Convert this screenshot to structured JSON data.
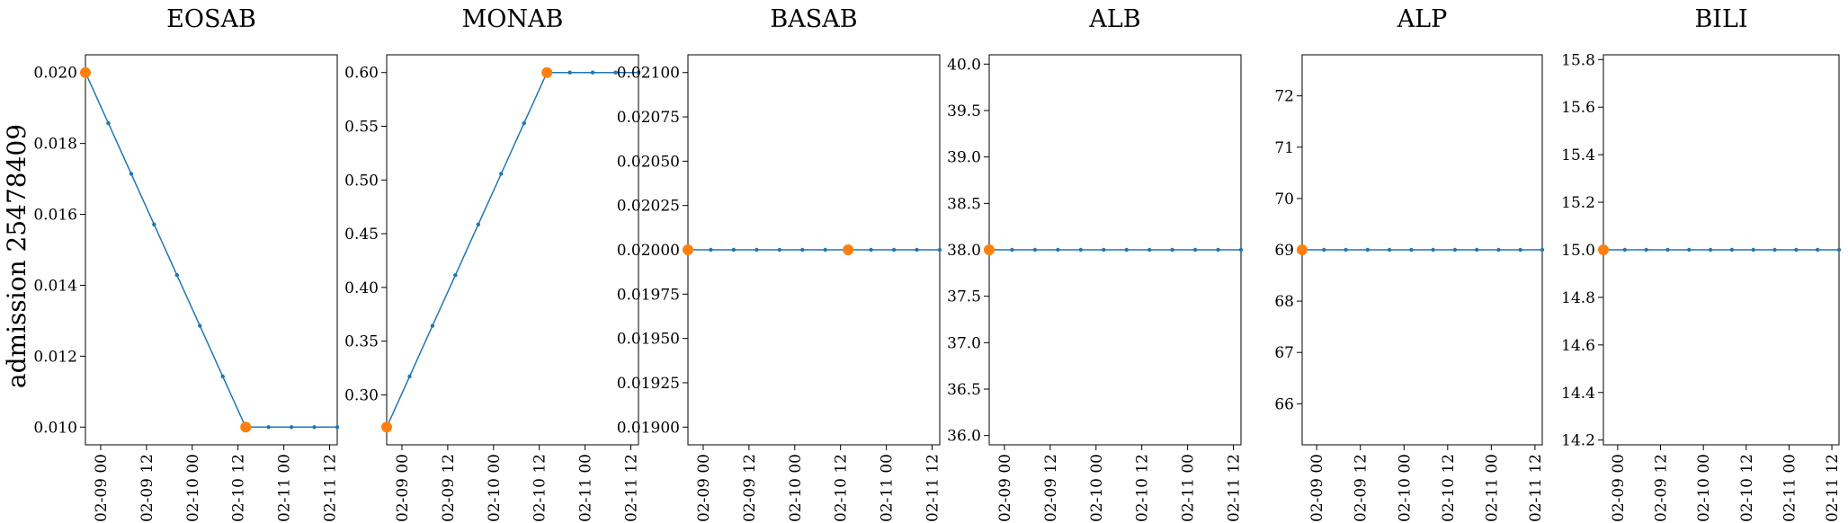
{
  "figure": {
    "ylabel": "admission 25478409"
  },
  "colors": {
    "line": "#1f77b4",
    "highlight": "#ff7f0e"
  },
  "x_ticks": [
    "02-09 00",
    "02-09 12",
    "02-10 00",
    "02-10 12",
    "02-11 00",
    "02-11 12"
  ],
  "x_hours": [
    0,
    12,
    24,
    36,
    48,
    60
  ],
  "chart_data": [
    {
      "type": "line",
      "title": "EOSAB",
      "ylim": [
        0.0095,
        0.0205
      ],
      "yticks": [
        0.01,
        0.012,
        0.014,
        0.016,
        0.018,
        0.02
      ],
      "ytick_decimals": 3,
      "x": [
        "02-08 20",
        "02-09 02",
        "02-09 08",
        "02-09 14",
        "02-09 20",
        "02-10 02",
        "02-10 08",
        "02-10 14",
        "02-10 20",
        "02-11 02",
        "02-11 08",
        "02-11 14"
      ],
      "values": [
        0.02,
        0.018571,
        0.017143,
        0.015714,
        0.014286,
        0.012857,
        0.011429,
        0.01,
        0.01,
        0.01,
        0.01,
        0.01
      ],
      "highlight_x": [
        "02-08 20",
        "02-10 14"
      ],
      "highlight_values": [
        0.02,
        0.01
      ]
    },
    {
      "type": "line",
      "title": "MONAB",
      "ylim": [
        0.2535,
        0.6165
      ],
      "yticks": [
        0.3,
        0.35,
        0.4,
        0.45,
        0.5,
        0.55,
        0.6
      ],
      "ytick_decimals": 2,
      "x": [
        "02-08 20",
        "02-09 02",
        "02-09 08",
        "02-09 14",
        "02-09 20",
        "02-10 02",
        "02-10 08",
        "02-10 14",
        "02-10 20",
        "02-11 02",
        "02-11 08",
        "02-11 14"
      ],
      "values": [
        0.27,
        0.31714,
        0.36429,
        0.41143,
        0.45857,
        0.50571,
        0.55286,
        0.6,
        0.6,
        0.6,
        0.6,
        0.6
      ],
      "highlight_x": [
        "02-08 20",
        "02-10 14"
      ],
      "highlight_values": [
        0.27,
        0.6
      ]
    },
    {
      "type": "line",
      "title": "BASAB",
      "ylim": [
        0.0189,
        0.0211
      ],
      "yticks": [
        0.019,
        0.01925,
        0.0195,
        0.01975,
        0.02,
        0.02025,
        0.0205,
        0.02075,
        0.021
      ],
      "ytick_decimals": 5,
      "x": [
        "02-08 20",
        "02-09 02",
        "02-09 08",
        "02-09 14",
        "02-09 20",
        "02-10 02",
        "02-10 08",
        "02-10 14",
        "02-10 20",
        "02-11 02",
        "02-11 08",
        "02-11 14"
      ],
      "values": [
        0.02,
        0.02,
        0.02,
        0.02,
        0.02,
        0.02,
        0.02,
        0.02,
        0.02,
        0.02,
        0.02,
        0.02
      ],
      "highlight_x": [
        "02-08 20",
        "02-10 14"
      ],
      "highlight_values": [
        0.02,
        0.02
      ]
    },
    {
      "type": "line",
      "title": "ALB",
      "ylim": [
        35.9,
        40.1
      ],
      "yticks": [
        36.0,
        36.5,
        37.0,
        37.5,
        38.0,
        38.5,
        39.0,
        39.5,
        40.0
      ],
      "ytick_decimals": 1,
      "x": [
        "02-08 20",
        "02-09 02",
        "02-09 08",
        "02-09 14",
        "02-09 20",
        "02-10 02",
        "02-10 08",
        "02-10 14",
        "02-10 20",
        "02-11 02",
        "02-11 08",
        "02-11 14"
      ],
      "values": [
        38.0,
        38.0,
        38.0,
        38.0,
        38.0,
        38.0,
        38.0,
        38.0,
        38.0,
        38.0,
        38.0,
        38.0
      ],
      "highlight_x": [
        "02-08 20"
      ],
      "highlight_values": [
        38.0
      ]
    },
    {
      "type": "line",
      "title": "ALP",
      "ylim": [
        65.2,
        72.8
      ],
      "yticks": [
        66,
        67,
        68,
        69,
        70,
        71,
        72
      ],
      "ytick_decimals": 0,
      "x": [
        "02-08 20",
        "02-09 02",
        "02-09 08",
        "02-09 14",
        "02-09 20",
        "02-10 02",
        "02-10 08",
        "02-10 14",
        "02-10 20",
        "02-11 02",
        "02-11 08",
        "02-11 14"
      ],
      "values": [
        69,
        69,
        69,
        69,
        69,
        69,
        69,
        69,
        69,
        69,
        69,
        69
      ],
      "highlight_x": [
        "02-08 20"
      ],
      "highlight_values": [
        69
      ]
    },
    {
      "type": "line",
      "title": "BILI",
      "ylim": [
        14.18,
        15.82
      ],
      "yticks": [
        14.2,
        14.4,
        14.6,
        14.8,
        15.0,
        15.2,
        15.4,
        15.6,
        15.8
      ],
      "ytick_decimals": 1,
      "x": [
        "02-08 20",
        "02-09 02",
        "02-09 08",
        "02-09 14",
        "02-09 20",
        "02-10 02",
        "02-10 08",
        "02-10 14",
        "02-10 20",
        "02-11 02",
        "02-11 08",
        "02-11 14"
      ],
      "values": [
        15.0,
        15.0,
        15.0,
        15.0,
        15.0,
        15.0,
        15.0,
        15.0,
        15.0,
        15.0,
        15.0,
        15.0
      ],
      "highlight_x": [
        "02-08 20"
      ],
      "highlight_values": [
        15.0
      ]
    }
  ]
}
